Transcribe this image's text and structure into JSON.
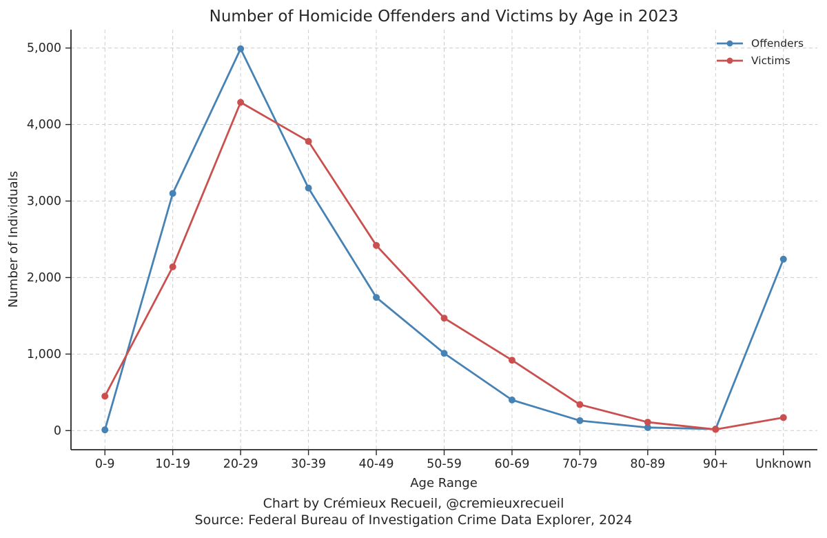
{
  "title": "Number of Homicide Offenders and Victims by Age in 2023",
  "footer": {
    "line1": "Chart by Crémieux Recueil, @cremieuxrecueil",
    "line2": "Source: Federal Bureau of Investigation Crime Data Explorer, 2024"
  },
  "chart_data": {
    "type": "line",
    "title": "Number of Homicide Offenders and Victims by Age in 2023",
    "xlabel": "Age Range",
    "ylabel": "Number of Individuals",
    "categories": [
      "0-9",
      "10-19",
      "20-29",
      "30-39",
      "40-49",
      "50-59",
      "60-69",
      "70-79",
      "80-89",
      "90+",
      "Unknown"
    ],
    "series": [
      {
        "name": "Offenders",
        "color": "#4682B4",
        "values": [
          10,
          3100,
          4990,
          3170,
          1740,
          1010,
          400,
          130,
          40,
          20,
          2240
        ]
      },
      {
        "name": "Victims",
        "color": "#C9504E",
        "values": [
          450,
          2140,
          4290,
          3780,
          2420,
          1470,
          920,
          340,
          110,
          15,
          170
        ]
      }
    ],
    "yticks": [
      0,
      1000,
      2000,
      3000,
      4000,
      5000
    ],
    "ytick_labels": [
      "0",
      "1,000",
      "2,000",
      "3,000",
      "4,000",
      "5,000"
    ],
    "ylim": [
      -250,
      5240
    ],
    "grid": true,
    "grid_style": "dashed",
    "legend_position": "top-right",
    "marker": "circle",
    "colors": {
      "grid": "#cccccc",
      "axis": "#262626",
      "text": "#262626",
      "background": "#ffffff"
    }
  }
}
